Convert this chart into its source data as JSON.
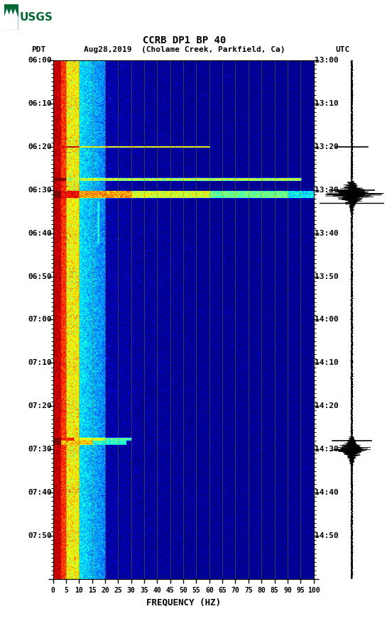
{
  "title_line1": "CCRB DP1 BP 40",
  "title_line2": "PDT   Aug28,2019  (Cholame Creek, Parkfield, Ca)         UTC",
  "xlabel": "FREQUENCY (HZ)",
  "freq_ticks": [
    0,
    5,
    10,
    15,
    20,
    25,
    30,
    35,
    40,
    45,
    50,
    55,
    60,
    65,
    70,
    75,
    80,
    85,
    90,
    95,
    100
  ],
  "pdt_times": [
    "06:00",
    "06:10",
    "06:20",
    "06:30",
    "06:40",
    "06:50",
    "07:00",
    "07:10",
    "07:20",
    "07:30",
    "07:40",
    "07:50"
  ],
  "utc_times": [
    "13:00",
    "13:10",
    "13:20",
    "13:30",
    "13:40",
    "13:50",
    "14:00",
    "14:10",
    "14:20",
    "14:30",
    "14:40",
    "14:50"
  ],
  "background_color": "#ffffff",
  "colormap": "jet",
  "fig_width": 5.52,
  "fig_height": 8.92,
  "dpi": 100,
  "grid_color": "#888800",
  "grid_alpha": 0.6,
  "grid_linewidth": 0.5
}
